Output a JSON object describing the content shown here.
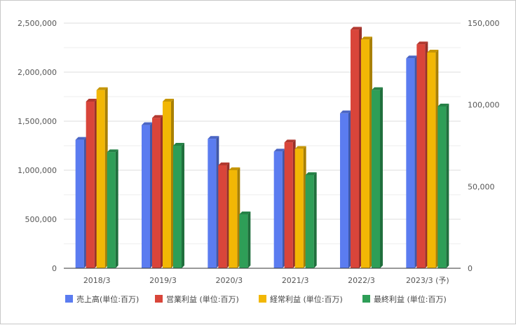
{
  "chart_data": {
    "type": "bar",
    "categories": [
      "2018/3",
      "2019/3",
      "2020/3",
      "2021/3",
      "2022/3",
      "2023/3 (予)"
    ],
    "series": [
      {
        "name": "売上高(単位:百万)",
        "axis": "left",
        "color": "#5b7cf0",
        "values": [
          1310000,
          1460000,
          1320000,
          1190000,
          1580000,
          2140000
        ]
      },
      {
        "name": "営業利益 (単位:百万)",
        "axis": "right",
        "color": "#d9453a",
        "values": [
          102000,
          92000,
          63000,
          77000,
          146000,
          137000
        ]
      },
      {
        "name": "経常利益 (単位:百万)",
        "axis": "right",
        "color": "#f2b705",
        "values": [
          109000,
          102000,
          60000,
          73000,
          140000,
          132000
        ]
      },
      {
        "name": "最終利益 (単位:百万)",
        "axis": "right",
        "color": "#2e9e57",
        "values": [
          71000,
          75000,
          33000,
          57000,
          109000,
          99000
        ]
      }
    ],
    "y_left": {
      "lim": [
        0,
        2500000
      ],
      "ticks": [
        "0",
        "500,000",
        "1,000,000",
        "1,500,000",
        "2,000,000",
        "2,500,000"
      ]
    },
    "y_right": {
      "lim": [
        0,
        150000
      ],
      "ticks": [
        "0",
        "50,000",
        "100,000",
        "150,000"
      ]
    },
    "grid": true,
    "legend_position": "bottom",
    "title": "",
    "xlabel": "",
    "ylabel": ""
  }
}
